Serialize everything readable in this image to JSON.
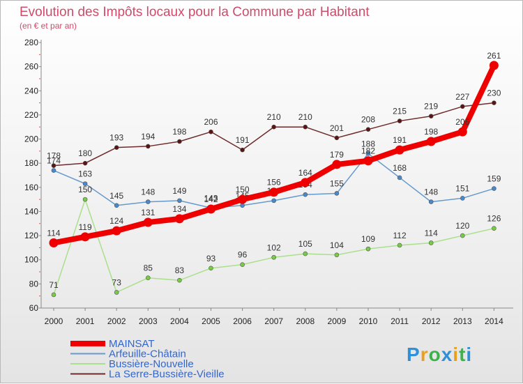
{
  "chart_data": {
    "type": "line",
    "title": "Evolution des Impôts locaux pour la Commune par Habitant",
    "subtitle": "(en € et par an)",
    "xlabel": "",
    "ylabel": "",
    "ylim": [
      60,
      280
    ],
    "yticks": [
      60,
      80,
      100,
      120,
      140,
      160,
      180,
      200,
      220,
      240,
      260,
      280
    ],
    "x": [
      2000,
      2001,
      2002,
      2003,
      2004,
      2005,
      2006,
      2007,
      2008,
      2009,
      2010,
      2011,
      2012,
      2013,
      2014
    ],
    "grid": false,
    "legend_position": "bottom-left",
    "series": [
      {
        "name": "La Serre-Bussière-Vieille",
        "color": "#6e2a2a",
        "marker": "#5a1414",
        "values": [
          178,
          180,
          193,
          194,
          198,
          206,
          191,
          210,
          210,
          201,
          208,
          215,
          219,
          227,
          230
        ]
      },
      {
        "name": "Arfeuille-Châtain",
        "color": "#6699cc",
        "marker": "#4a88cc",
        "values": [
          174,
          163,
          145,
          148,
          149,
          143,
          145,
          149,
          154,
          155,
          188,
          168,
          148,
          151,
          159
        ]
      },
      {
        "name": "Bussière-Nouvelle",
        "color": "#a9e08a",
        "marker": "#77cc44",
        "values": [
          71,
          150,
          73,
          85,
          83,
          93,
          96,
          102,
          105,
          104,
          109,
          112,
          114,
          120,
          126
        ]
      },
      {
        "name": "MAINSAT",
        "color": "#ee0000",
        "marker": "#ee0000",
        "values": [
          114,
          119,
          124,
          131,
          134,
          142,
          150,
          156,
          164,
          179,
          182,
          191,
          198,
          206,
          261
        ]
      }
    ],
    "legend_order": [
      "MAINSAT",
      "Arfeuille-Châtain",
      "Bussière-Nouvelle",
      "La Serre-Bussière-Vieille"
    ],
    "legend_colors": {
      "MAINSAT": "#3366cc",
      "Arfeuille-Châtain": "#3366cc",
      "Bussière-Nouvelle": "#3366cc",
      "La Serre-Bussière-Vieille": "#3366cc"
    }
  },
  "logo": {
    "letters": [
      "P",
      "r",
      "o",
      "x",
      "i",
      "t",
      "i"
    ],
    "colors": [
      "#2f8fd8",
      "#e8a020",
      "#3bb24a",
      "#2f8fd8",
      "#e8a020",
      "#3bb24a",
      "#2f8fd8"
    ]
  }
}
